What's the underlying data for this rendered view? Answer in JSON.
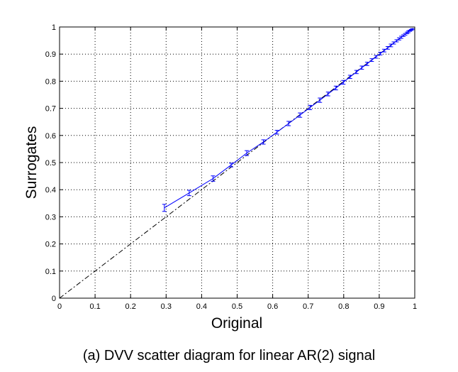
{
  "caption": "(a) DVV scatter diagram for linear AR(2) signal",
  "colors": {
    "series": "#0000ff",
    "reference": "#000000",
    "grid": "#000000",
    "axes": "#000000"
  },
  "chart_data": {
    "type": "scatter",
    "title": "",
    "xlabel": "Original",
    "ylabel": "Surrogates",
    "xlim": [
      0,
      1
    ],
    "ylim": [
      0,
      1
    ],
    "grid": true,
    "xticks": [
      "0",
      "0.1",
      "0.2",
      "0.3",
      "0.4",
      "0.5",
      "0.6",
      "0.7",
      "0.8",
      "0.9",
      "1"
    ],
    "yticks": [
      "0",
      "0.1",
      "0.2",
      "0.3",
      "0.4",
      "0.5",
      "0.6",
      "0.7",
      "0.8",
      "0.9",
      "1"
    ],
    "reference_line": {
      "style": "dash-dot",
      "from": [
        0,
        0
      ],
      "to": [
        1,
        1
      ]
    },
    "series": [
      {
        "style": "solid line with error bars",
        "points": [
          {
            "x": 0.295,
            "y": 0.333,
            "err": 0.013
          },
          {
            "x": 0.365,
            "y": 0.388,
            "err": 0.01
          },
          {
            "x": 0.432,
            "y": 0.441,
            "err": 0.01
          },
          {
            "x": 0.483,
            "y": 0.491,
            "err": 0.007
          },
          {
            "x": 0.527,
            "y": 0.535,
            "err": 0.009
          },
          {
            "x": 0.574,
            "y": 0.576,
            "err": 0.008
          },
          {
            "x": 0.612,
            "y": 0.612,
            "err": 0.007
          },
          {
            "x": 0.645,
            "y": 0.644,
            "err": 0.008
          },
          {
            "x": 0.677,
            "y": 0.675,
            "err": 0.008
          },
          {
            "x": 0.705,
            "y": 0.703,
            "err": 0.008
          },
          {
            "x": 0.733,
            "y": 0.73,
            "err": 0.008
          },
          {
            "x": 0.756,
            "y": 0.753,
            "err": 0.007
          },
          {
            "x": 0.778,
            "y": 0.775,
            "err": 0.007
          },
          {
            "x": 0.799,
            "y": 0.796,
            "err": 0.007
          },
          {
            "x": 0.818,
            "y": 0.816,
            "err": 0.006
          },
          {
            "x": 0.836,
            "y": 0.834,
            "err": 0.006
          },
          {
            "x": 0.851,
            "y": 0.85,
            "err": 0.006
          },
          {
            "x": 0.866,
            "y": 0.864,
            "err": 0.006
          },
          {
            "x": 0.879,
            "y": 0.878,
            "err": 0.005
          },
          {
            "x": 0.891,
            "y": 0.89,
            "err": 0.005
          },
          {
            "x": 0.903,
            "y": 0.902,
            "err": 0.005
          },
          {
            "x": 0.914,
            "y": 0.913,
            "err": 0.005
          },
          {
            "x": 0.924,
            "y": 0.923,
            "err": 0.005
          },
          {
            "x": 0.933,
            "y": 0.932,
            "err": 0.005
          },
          {
            "x": 0.941,
            "y": 0.941,
            "err": 0.004
          },
          {
            "x": 0.949,
            "y": 0.949,
            "err": 0.004
          },
          {
            "x": 0.956,
            "y": 0.956,
            "err": 0.004
          },
          {
            "x": 0.962,
            "y": 0.962,
            "err": 0.004
          },
          {
            "x": 0.968,
            "y": 0.968,
            "err": 0.003
          },
          {
            "x": 0.973,
            "y": 0.973,
            "err": 0.003
          },
          {
            "x": 0.978,
            "y": 0.978,
            "err": 0.003
          },
          {
            "x": 0.982,
            "y": 0.982,
            "err": 0.003
          },
          {
            "x": 0.986,
            "y": 0.986,
            "err": 0.002
          },
          {
            "x": 0.99,
            "y": 0.989,
            "err": 0.002
          },
          {
            "x": 0.993,
            "y": 0.992,
            "err": 0.002
          }
        ]
      }
    ]
  }
}
